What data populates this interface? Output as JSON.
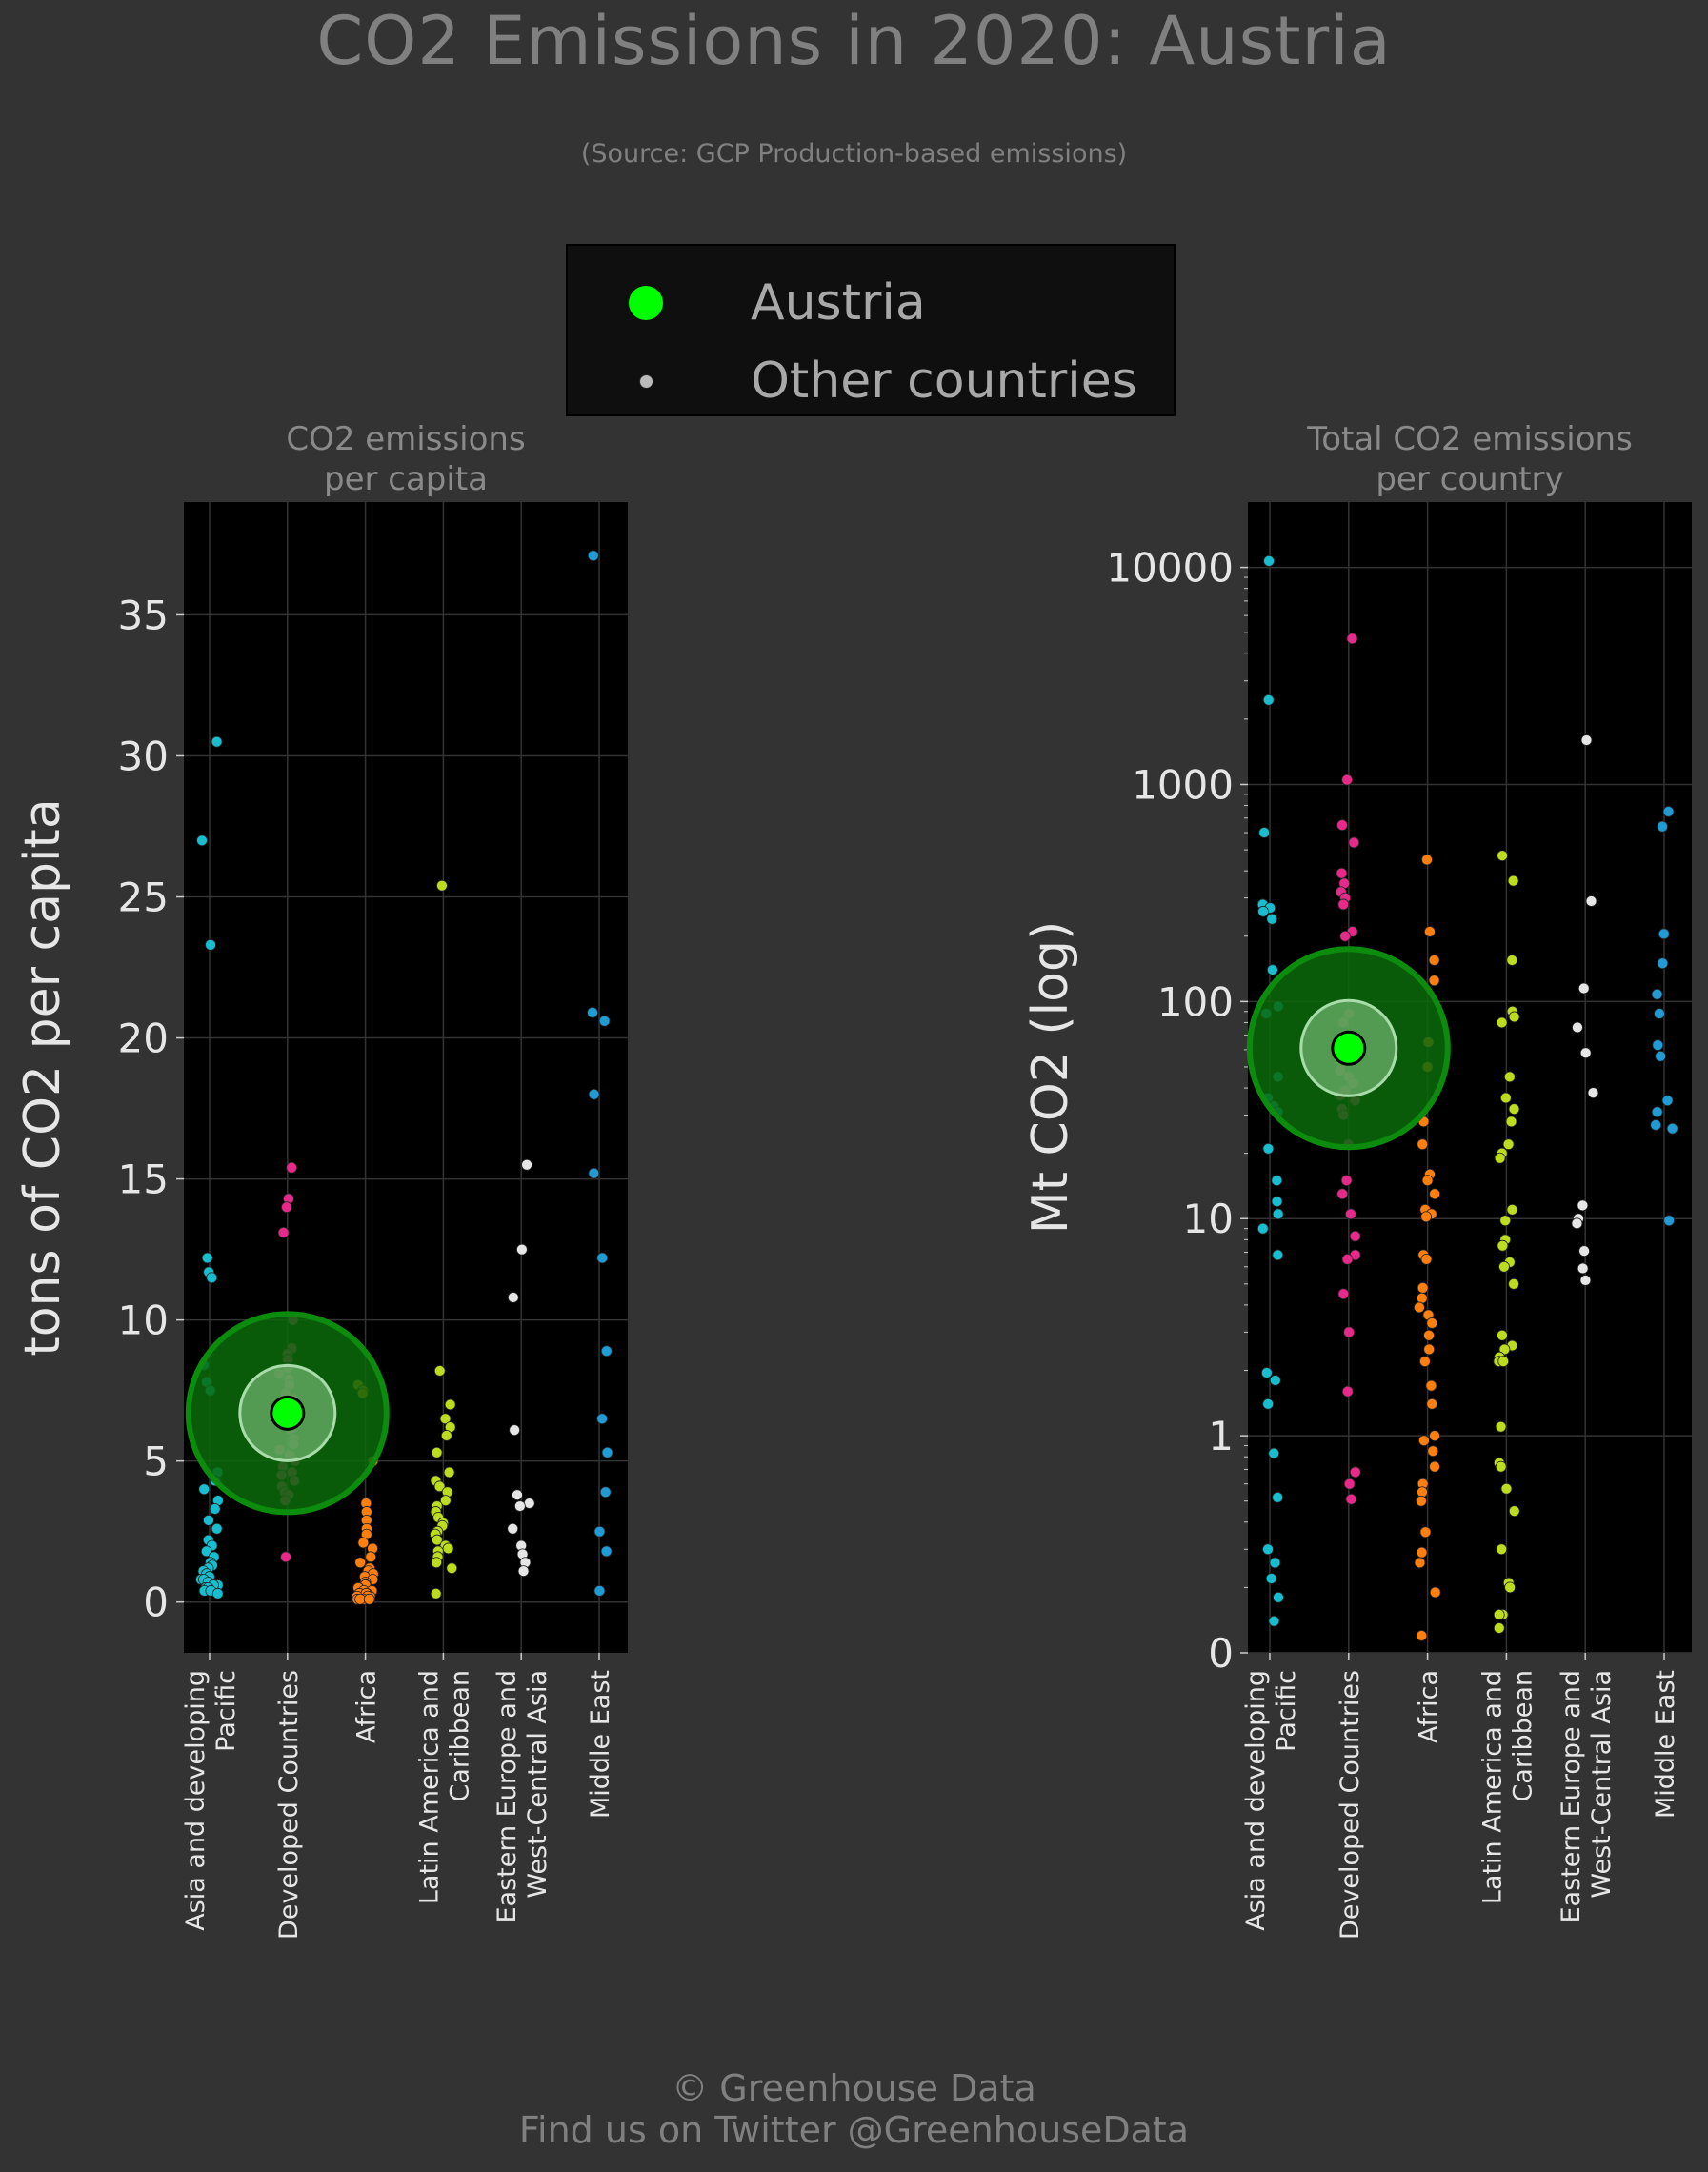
{
  "title": "CO2 Emissions in 2020: Austria",
  "subtitle": "(Source: GCP Production-based emissions)",
  "legend": {
    "highlight_label": "Austria",
    "other_label": "Other countries",
    "highlight_color": "#00ff00",
    "other_color": "#bbbbbb"
  },
  "footer": {
    "line1": "© Greenhouse Data",
    "line2": "Find us on Twitter @GreenhouseData"
  },
  "colors": {
    "background": "#333333",
    "plot_background": "#000000",
    "grid": "#333333",
    "text": "#e6e6e6",
    "highlight_ring": "#0a8a0a"
  },
  "chart_data": [
    {
      "type": "scatter",
      "panel_title": [
        "CO2 emissions",
        "per capita"
      ],
      "ylabel": "tons of CO2 per capita",
      "yscale": "linear",
      "ylim": [
        -1.8,
        39
      ],
      "yticks": [
        0,
        5,
        10,
        15,
        20,
        25,
        30,
        35
      ],
      "ytick_labels": [
        "0",
        "5",
        "10",
        "15",
        "20",
        "25",
        "30",
        "35"
      ],
      "grid": true,
      "categories": [
        [
          "Asia and developing",
          "Pacific"
        ],
        [
          "Developed Countries"
        ],
        [
          "Africa"
        ],
        [
          "Latin America and",
          "Caribbean"
        ],
        [
          "Eastern Europe and",
          "West-Central Asia"
        ],
        [
          "Middle East"
        ]
      ],
      "category_colors": [
        "#17becf",
        "#e7298a",
        "#ff7f0e",
        "#bcdc1e",
        "#e6e6e6",
        "#1f9bd6"
      ],
      "highlight": {
        "name": "Austria",
        "category_index": 1,
        "value": 6.7
      },
      "series": [
        {
          "values": [
            30.5,
            27.0,
            23.3,
            12.2,
            11.7,
            11.5,
            8.4,
            7.8,
            7.5,
            4.6,
            4.3,
            4.0,
            3.6,
            3.3,
            2.9,
            2.6,
            2.2,
            2.0,
            1.8,
            1.6,
            1.4,
            1.3,
            1.2,
            1.1,
            1.0,
            0.9,
            0.8,
            0.8,
            0.7,
            0.6,
            0.6,
            0.5,
            0.5,
            0.4,
            0.4,
            0.3
          ]
        },
        {
          "values": [
            15.4,
            14.3,
            14.0,
            13.1,
            10.0,
            9.0,
            8.8,
            8.6,
            8.3,
            8.1,
            7.9,
            7.7,
            7.4,
            7.2,
            7.0,
            6.8,
            6.6,
            6.3,
            6.1,
            5.8,
            5.6,
            5.4,
            5.2,
            5.0,
            4.8,
            4.6,
            4.5,
            4.3,
            4.1,
            3.9,
            3.8,
            3.6,
            1.6
          ]
        },
        {
          "values": [
            7.7,
            7.5,
            7.4,
            5.0,
            3.5,
            3.2,
            2.9,
            2.6,
            2.4,
            2.1,
            1.9,
            1.6,
            1.4,
            1.2,
            1.1,
            1.0,
            0.9,
            0.8,
            0.7,
            0.6,
            0.6,
            0.5,
            0.5,
            0.4,
            0.4,
            0.3,
            0.3,
            0.3,
            0.2,
            0.2,
            0.2,
            0.1,
            0.1,
            0.1,
            0.1
          ]
        },
        {
          "values": [
            25.4,
            8.2,
            7.0,
            6.5,
            6.2,
            5.9,
            5.3,
            4.6,
            4.3,
            4.1,
            3.9,
            3.6,
            3.4,
            3.2,
            3.0,
            2.8,
            2.7,
            2.5,
            2.4,
            2.2,
            2.0,
            1.9,
            1.8,
            1.6,
            1.4,
            1.2,
            0.3
          ]
        },
        {
          "values": [
            15.5,
            12.5,
            10.8,
            6.1,
            3.8,
            3.5,
            3.4,
            2.6,
            2.0,
            1.7,
            1.4,
            1.1
          ]
        },
        {
          "values": [
            37.1,
            20.9,
            20.6,
            18.0,
            15.2,
            12.2,
            8.9,
            6.5,
            5.3,
            3.9,
            2.5,
            1.8,
            0.4
          ]
        }
      ]
    },
    {
      "type": "scatter",
      "panel_title": [
        "Total CO2 emissions",
        "per country"
      ],
      "ylabel": "Mt CO2 (log)",
      "yscale": "log",
      "ylim": [
        0.1,
        20000
      ],
      "yticks": [
        0.1,
        1,
        10,
        100,
        1000,
        10000
      ],
      "ytick_labels": [
        "0",
        "1",
        "10",
        "100",
        "1000",
        "10000"
      ],
      "grid": true,
      "categories": [
        [
          "Asia and developing",
          "Pacific"
        ],
        [
          "Developed Countries"
        ],
        [
          "Africa"
        ],
        [
          "Latin America and",
          "Caribbean"
        ],
        [
          "Eastern Europe and",
          "West-Central Asia"
        ],
        [
          "Middle East"
        ]
      ],
      "category_colors": [
        "#17becf",
        "#e7298a",
        "#ff7f0e",
        "#bcdc1e",
        "#e6e6e6",
        "#1f9bd6"
      ],
      "highlight": {
        "name": "Austria",
        "category_index": 1,
        "value": 61
      },
      "series": [
        {
          "values": [
            10700,
            2450,
            600,
            280,
            270,
            260,
            240,
            140,
            95,
            88,
            45,
            36,
            33,
            31,
            21,
            15,
            12,
            10.5,
            9,
            6.8,
            1.95,
            1.8,
            1.4,
            0.83,
            0.52,
            0.3,
            0.26,
            0.22,
            0.18,
            0.14
          ]
        },
        {
          "values": [
            4700,
            1050,
            650,
            540,
            390,
            350,
            320,
            300,
            280,
            210,
            200,
            88,
            80,
            70,
            56,
            52,
            48,
            45,
            42,
            39,
            37,
            35,
            32,
            30,
            22,
            15,
            13,
            10.5,
            8.3,
            6.8,
            6.5,
            4.5,
            3.0,
            1.6,
            0.68,
            0.6,
            0.51
          ]
        },
        {
          "values": [
            450,
            210,
            155,
            125,
            65,
            50,
            28,
            22,
            16,
            15,
            13,
            11,
            10.5,
            10.2,
            6.8,
            6.5,
            4.8,
            4.3,
            3.9,
            3.6,
            3.3,
            2.9,
            2.5,
            2.2,
            1.7,
            1.4,
            1.0,
            0.95,
            0.85,
            0.72,
            0.6,
            0.55,
            0.5,
            0.36,
            0.29,
            0.26,
            0.19,
            0.12
          ]
        },
        {
          "values": [
            470,
            360,
            155,
            90,
            85,
            80,
            45,
            36,
            32,
            28,
            22,
            20,
            19,
            11,
            9.8,
            8.0,
            7.5,
            6.3,
            6.0,
            5.0,
            2.9,
            2.6,
            2.5,
            2.3,
            2.2,
            2.2,
            1.1,
            0.75,
            0.72,
            0.57,
            0.45,
            0.3,
            0.21,
            0.2,
            0.15,
            0.15,
            0.13
          ]
        },
        {
          "values": [
            1600,
            290,
            115,
            76,
            58,
            38,
            11.5,
            10.0,
            9.5,
            7.1,
            5.9,
            5.2
          ]
        },
        {
          "values": [
            750,
            640,
            205,
            150,
            108,
            88,
            63,
            56,
            35,
            31,
            27,
            26,
            9.8
          ]
        }
      ]
    }
  ]
}
